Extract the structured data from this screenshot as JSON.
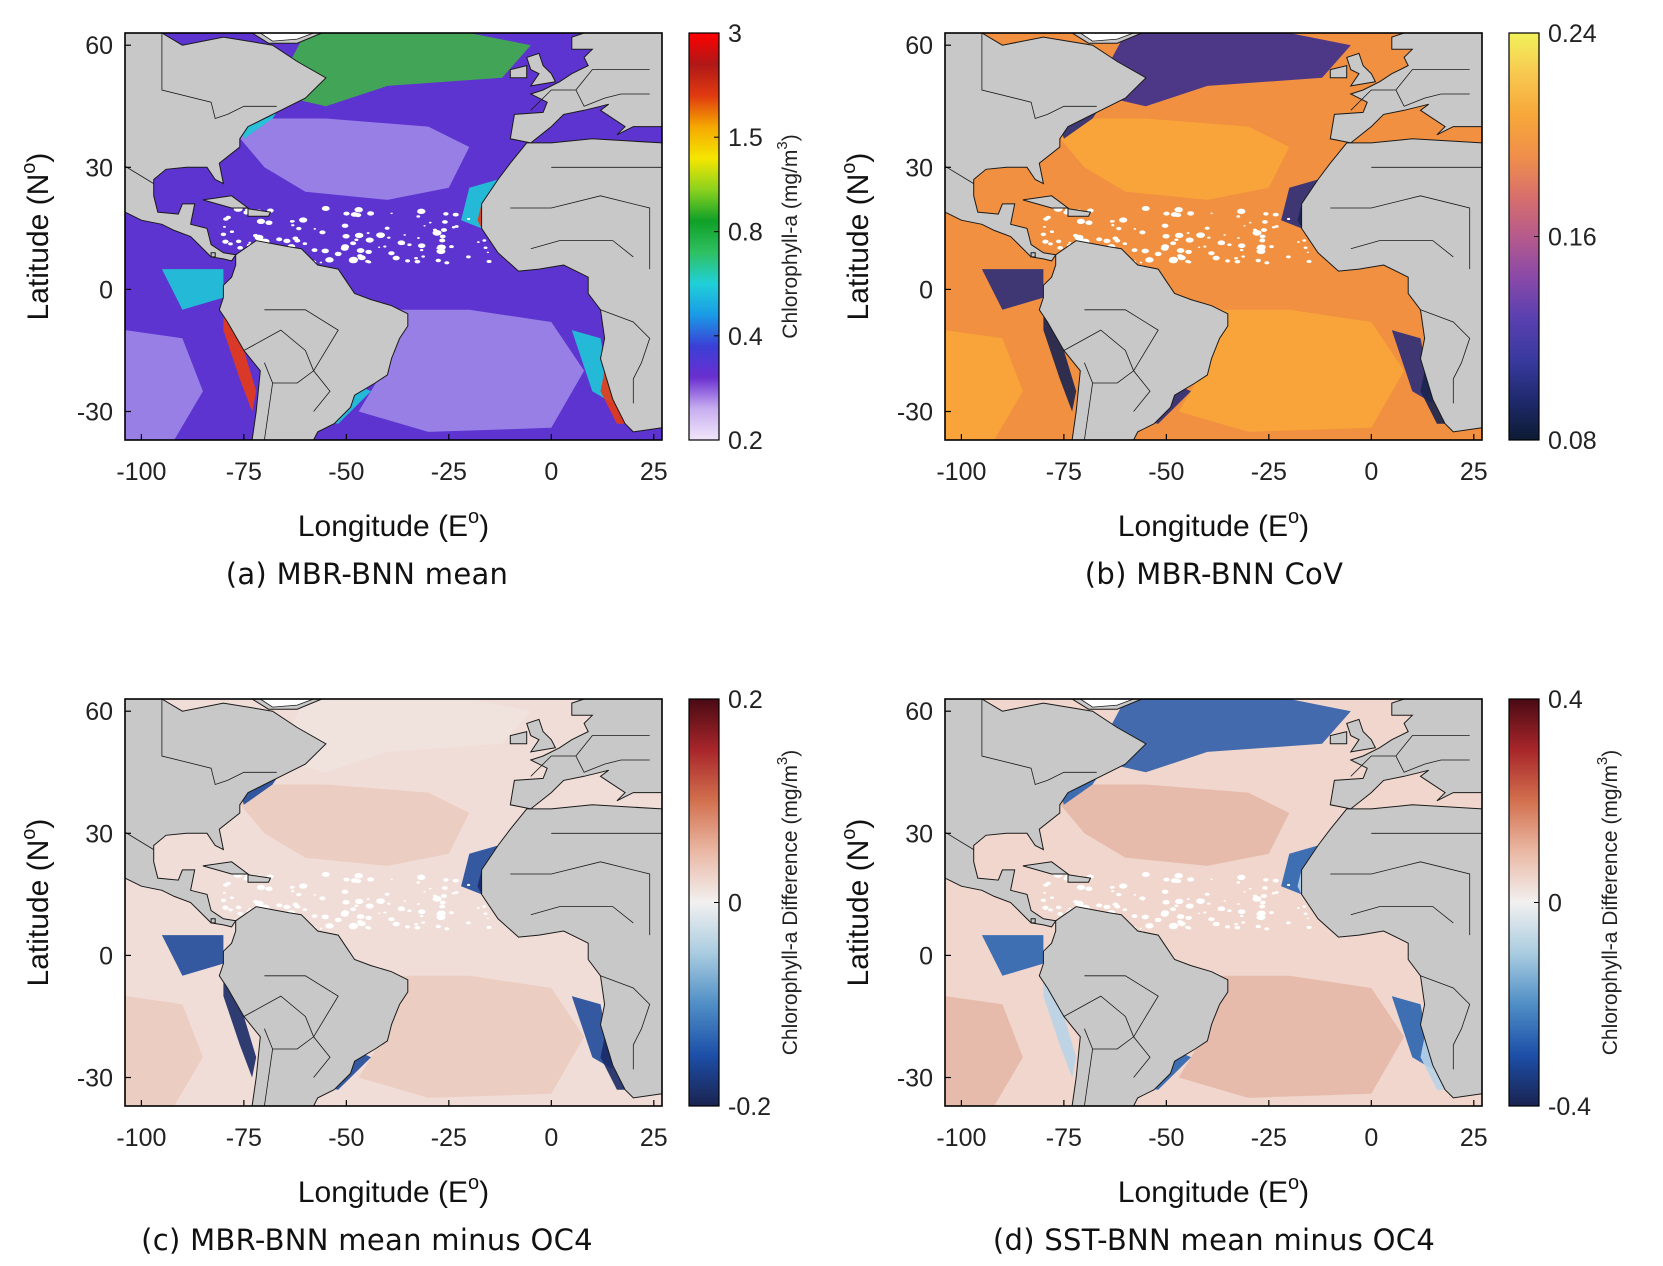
{
  "figure": {
    "x_axis": {
      "label": "Longitude (E",
      "label_sup": "o",
      "label_close": ")",
      "ticks": [
        "-100",
        "-75",
        "-50",
        "-25",
        "0",
        "25"
      ],
      "tick_values": [
        -100,
        -75,
        -50,
        -25,
        0,
        25
      ],
      "range": [
        -104,
        27
      ]
    },
    "y_axis": {
      "label": "Latitude (N",
      "label_sup": "o",
      "label_close": ")",
      "ticks": [
        "60",
        "30",
        "0",
        "-30"
      ],
      "tick_values": [
        60,
        30,
        0,
        -30
      ],
      "range": [
        -37,
        63
      ]
    },
    "land_color": "#c8c8c8",
    "no_data_color": "#ffffff"
  },
  "panels": [
    {
      "caption": "(a) MBR-BNN mean",
      "colorbar": {
        "label": "Chlorophyll-a (mg/m",
        "label_sup": "3",
        "label_close": ")",
        "ticks": [
          "3",
          "1.5",
          "0.8",
          "0.4",
          "0.2"
        ],
        "tick_values": [
          3,
          1.5,
          0.8,
          0.4,
          0.2
        ],
        "scale": "log",
        "colors": [
          "#f0e6fa",
          "#c8aef0",
          "#6a2fd0",
          "#3b3fd6",
          "#1a9be6",
          "#20d0d8",
          "#2fc060",
          "#0fa028",
          "#8cd21e",
          "#f5e600",
          "#f5a800",
          "#e03a10",
          "#b01818",
          "#ff0000"
        ]
      },
      "ocean_colors": {
        "gyre": "#9a84e6",
        "mid": "#5d34d0",
        "coast": "#1ec8d6",
        "north": "#3fb048",
        "hot": "#e83a14"
      }
    },
    {
      "caption": "(b) MBR-BNN CoV",
      "colorbar": {
        "label": "",
        "label_sup": "",
        "label_close": "",
        "ticks": [
          "0.24",
          "0.16",
          "0.08"
        ],
        "tick_values": [
          0.24,
          0.16,
          0.08
        ],
        "scale": "linear",
        "colors": [
          "#0d1b33",
          "#1f2a6e",
          "#3a3aa0",
          "#5a40b0",
          "#8a4aa8",
          "#b65a8c",
          "#d8706a",
          "#f0904a",
          "#f7a83a",
          "#f8c850",
          "#f2f25a"
        ]
      },
      "ocean_colors": {
        "gyre": "#f8a53a",
        "mid": "#f09040",
        "coast": "#2a2d7a",
        "north": "#3b2f8f",
        "hot": "#1a2350"
      }
    },
    {
      "caption": "(c) MBR-BNN mean minus OC4",
      "colorbar": {
        "label": "Chlorophyll-a Difference (mg/m",
        "label_sup": "3",
        "label_close": ")",
        "ticks": [
          "0.2",
          "0",
          "-0.2"
        ],
        "tick_values": [
          0.2,
          0,
          -0.2
        ],
        "scale": "linear",
        "colors": [
          "#1a2350",
          "#1d4fa8",
          "#4f8ec6",
          "#a9cce0",
          "#f2f0f0",
          "#eab8a4",
          "#d2704e",
          "#a8262a",
          "#4a0a14"
        ]
      },
      "ocean_colors": {
        "gyre": "#ebcbc0",
        "mid": "#f1ddd7",
        "coast": "#1f4a9a",
        "north": "#f0e2de",
        "hot": "#1a2a66"
      }
    },
    {
      "caption": "(d) SST-BNN mean minus OC4",
      "colorbar": {
        "label": "Chlorophyll-a Difference (mg/m",
        "label_sup": "3",
        "label_close": ")",
        "ticks": [
          "0.4",
          "0",
          "-0.4"
        ],
        "tick_values": [
          0.4,
          0,
          -0.4
        ],
        "scale": "linear",
        "colors": [
          "#1a2350",
          "#1d4fa8",
          "#4f8ec6",
          "#a9cce0",
          "#f2f0f0",
          "#eab8a4",
          "#d2704e",
          "#a8262a",
          "#4a0a14"
        ]
      },
      "ocean_colors": {
        "gyre": "#e6b9aa",
        "mid": "#f0d6cc",
        "coast": "#2a64b0",
        "north": "#2f5ea8",
        "hot": "#b8d4e8"
      }
    }
  ]
}
